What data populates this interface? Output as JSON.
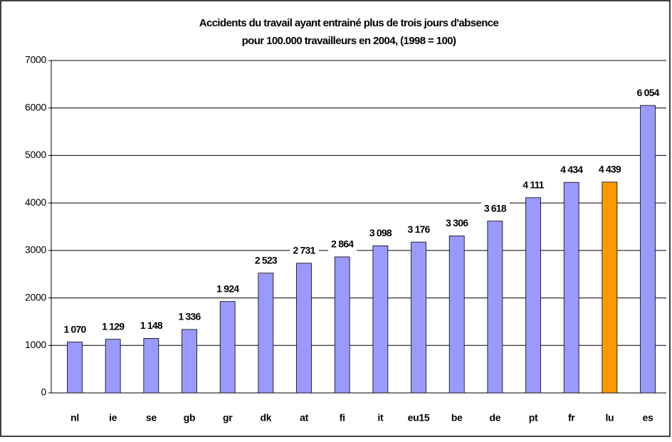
{
  "chart_data": {
    "type": "bar",
    "title": [
      "Accidents du travail ayant entrainé plus de trois jours d'absence",
      "pour 100.000 travailleurs en 2004, (1998 = 100)"
    ],
    "categories": [
      "nl",
      "ie",
      "se",
      "gb",
      "gr",
      "dk",
      "at",
      "fi",
      "it",
      "eu15",
      "be",
      "de",
      "pt",
      "fr",
      "lu",
      "es"
    ],
    "values": [
      1070,
      1129,
      1148,
      1336,
      1924,
      2523,
      2731,
      2864,
      3098,
      3176,
      3306,
      3618,
      4111,
      4434,
      4439,
      6054
    ],
    "value_labels": [
      "1 070",
      "1 129",
      "1 148",
      "1 336",
      "1 924",
      "2 523",
      "2 731",
      "2 864",
      "3 098",
      "3 176",
      "3 306",
      "3 618",
      "4 111",
      "4 434",
      "4 439",
      "6 054"
    ],
    "colors": [
      "#9999ff",
      "#9999ff",
      "#9999ff",
      "#9999ff",
      "#9999ff",
      "#9999ff",
      "#9999ff",
      "#9999ff",
      "#9999ff",
      "#9999ff",
      "#9999ff",
      "#9999ff",
      "#9999ff",
      "#9999ff",
      "#ff9900",
      "#9999ff"
    ],
    "ylim": [
      0,
      7000
    ],
    "yticks": [
      0,
      1000,
      2000,
      3000,
      4000,
      5000,
      6000,
      7000
    ],
    "grid": true
  }
}
